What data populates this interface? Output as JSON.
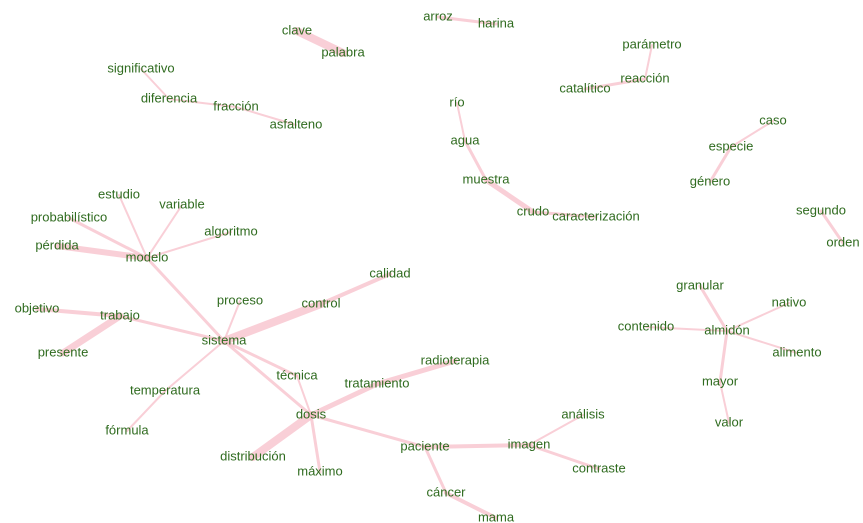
{
  "nodes": [
    "clave",
    "palabra",
    "arroz",
    "harina",
    "parámetro",
    "reacción",
    "catalítico",
    "significativo",
    "diferencia",
    "fracción",
    "asfalteno",
    "río",
    "agua",
    "muestra",
    "crudo",
    "caracterización",
    "caso",
    "especie",
    "género",
    "segundo",
    "orden",
    "estudio",
    "variable",
    "probabilístico",
    "algoritmo",
    "pérdida",
    "modelo",
    "calidad",
    "proceso",
    "control",
    "objetivo",
    "trabajo",
    "sistema",
    "presente",
    "granular",
    "nativo",
    "contenido",
    "almidón",
    "alimento",
    "radioterapia",
    "técnica",
    "tratamiento",
    "temperatura",
    "mayor",
    "análisis",
    "dosis",
    "valor",
    "fórmula",
    "paciente",
    "imagen",
    "distribución",
    "contraste",
    "máximo",
    "cáncer",
    "mama"
  ]
}
